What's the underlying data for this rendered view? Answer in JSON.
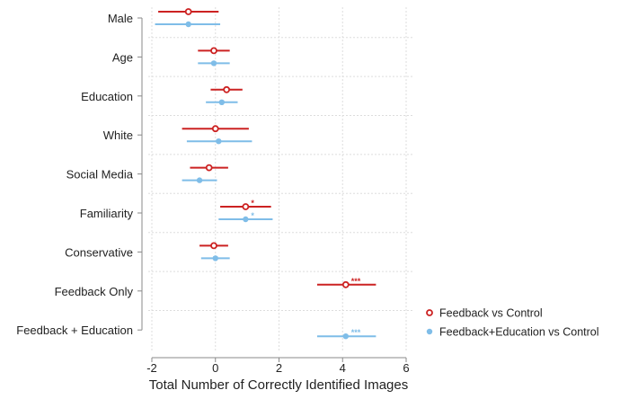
{
  "chart_data": {
    "type": "coefficient-plot",
    "title": "",
    "xlabel": "Total Number of Correctly Identified Images",
    "ylabel": "",
    "xlim": [
      -2,
      6
    ],
    "xticks": [
      -2,
      0,
      2,
      4,
      6
    ],
    "grid": true,
    "legend_position": "bottom-right",
    "categories": [
      "Male",
      "Age",
      "Education",
      "White",
      "Social Media",
      "Familiarity",
      "Conservative",
      "Feedback Only",
      "Feedback + Education"
    ],
    "series": [
      {
        "name": "Feedback vs Control",
        "color": "#cc2222",
        "marker": "open-circle",
        "points": [
          {
            "category": "Male",
            "estimate": -0.85,
            "lower": -1.8,
            "upper": 0.1,
            "sig": ""
          },
          {
            "category": "Age",
            "estimate": -0.05,
            "lower": -0.55,
            "upper": 0.45,
            "sig": ""
          },
          {
            "category": "Education",
            "estimate": 0.35,
            "lower": -0.15,
            "upper": 0.85,
            "sig": ""
          },
          {
            "category": "White",
            "estimate": 0.0,
            "lower": -1.05,
            "upper": 1.05,
            "sig": ""
          },
          {
            "category": "Social Media",
            "estimate": -0.2,
            "lower": -0.8,
            "upper": 0.4,
            "sig": ""
          },
          {
            "category": "Familiarity",
            "estimate": 0.95,
            "lower": 0.15,
            "upper": 1.75,
            "sig": "*"
          },
          {
            "category": "Conservative",
            "estimate": -0.05,
            "lower": -0.5,
            "upper": 0.4,
            "sig": ""
          },
          {
            "category": "Feedback Only",
            "estimate": 4.1,
            "lower": 3.2,
            "upper": 5.05,
            "sig": "***"
          }
        ]
      },
      {
        "name": "Feedback+Education vs Control",
        "color": "#7fbde8",
        "marker": "filled-circle",
        "points": [
          {
            "category": "Male",
            "estimate": -0.85,
            "lower": -1.9,
            "upper": 0.15,
            "sig": ""
          },
          {
            "category": "Age",
            "estimate": -0.05,
            "lower": -0.55,
            "upper": 0.45,
            "sig": ""
          },
          {
            "category": "Education",
            "estimate": 0.2,
            "lower": -0.3,
            "upper": 0.7,
            "sig": ""
          },
          {
            "category": "White",
            "estimate": 0.1,
            "lower": -0.9,
            "upper": 1.15,
            "sig": ""
          },
          {
            "category": "Social Media",
            "estimate": -0.5,
            "lower": -1.05,
            "upper": 0.05,
            "sig": ""
          },
          {
            "category": "Familiarity",
            "estimate": 0.95,
            "lower": 0.1,
            "upper": 1.8,
            "sig": "*"
          },
          {
            "category": "Conservative",
            "estimate": 0.0,
            "lower": -0.45,
            "upper": 0.45,
            "sig": ""
          },
          {
            "category": "Feedback + Education",
            "estimate": 4.1,
            "lower": 3.2,
            "upper": 5.05,
            "sig": "***"
          }
        ]
      }
    ]
  }
}
